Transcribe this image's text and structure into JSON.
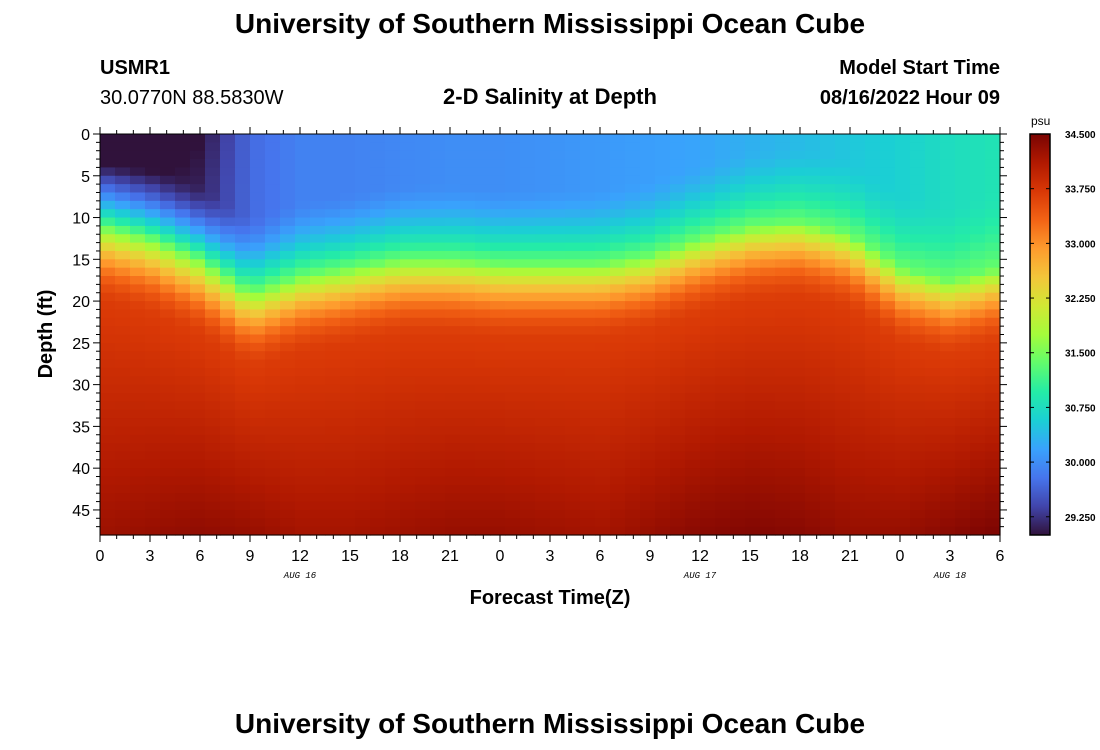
{
  "page_title": "University of Southern Mississippi Ocean Cube",
  "footer_title": "University of Southern Mississippi Ocean Cube",
  "station": {
    "name": "USMR1",
    "coords": "30.0770N  88.5830W"
  },
  "model": {
    "label": "Model Start Time",
    "time": "08/16/2022 Hour 09"
  },
  "chart_data": {
    "type": "heatmap",
    "title": "2-D Salinity at Depth",
    "xlabel": "Forecast Time(Z)",
    "ylabel": "Depth (ft)",
    "x_tick_labels": [
      "0",
      "3",
      "6",
      "9",
      "12",
      "15",
      "18",
      "21",
      "0",
      "3",
      "6",
      "9",
      "12",
      "15",
      "18",
      "21",
      "0",
      "3",
      "6"
    ],
    "x_range_hours": [
      0,
      54
    ],
    "date_labels": [
      {
        "hour": 12,
        "label": "AUG 16"
      },
      {
        "hour": 36,
        "label": "AUG 17"
      },
      {
        "hour": 51,
        "label": "AUG 18"
      }
    ],
    "y_tick_labels": [
      "0",
      "5",
      "10",
      "15",
      "20",
      "25",
      "30",
      "35",
      "40",
      "45"
    ],
    "y_range_ft": [
      0,
      48
    ],
    "colorbar": {
      "unit": "psu",
      "min": 29.0,
      "max": 34.5,
      "ticks": [
        "34.500",
        "33.750",
        "33.000",
        "32.250",
        "31.500",
        "30.750",
        "30.000",
        "29.250"
      ],
      "colors": [
        "#30123b",
        "#4145ab",
        "#4675ed",
        "#39a2fc",
        "#1bcfd4",
        "#24eca6",
        "#61fc6c",
        "#a4fc3b",
        "#d1e834",
        "#f3c63a",
        "#fe9b2d",
        "#f36315",
        "#d93806",
        "#b11901",
        "#7a0402"
      ]
    },
    "profile_samples": {
      "hours": [
        0,
        3,
        6,
        9,
        12,
        15,
        18,
        21,
        24,
        27,
        30,
        33,
        36,
        39,
        42,
        45,
        48,
        51,
        54
      ],
      "halocline_depth_ft": [
        11.0,
        12.5,
        15.0,
        19.0,
        17.0,
        16.0,
        15.0,
        15.0,
        15.5,
        15.5,
        15.5,
        14.5,
        12.5,
        11.0,
        10.5,
        12.0,
        16.0,
        17.5,
        16.0
      ],
      "surface_psu": [
        29.0,
        29.0,
        29.1,
        29.7,
        29.9,
        29.9,
        29.95,
        30.0,
        30.0,
        30.05,
        30.1,
        30.15,
        30.2,
        30.3,
        30.4,
        30.5,
        30.6,
        30.75,
        30.85
      ],
      "deep_psu": [
        34.25,
        34.3,
        34.35,
        34.3,
        34.2,
        34.2,
        34.25,
        34.3,
        34.3,
        34.25,
        34.2,
        34.3,
        34.4,
        34.45,
        34.4,
        34.3,
        34.3,
        34.4,
        34.5
      ]
    }
  }
}
